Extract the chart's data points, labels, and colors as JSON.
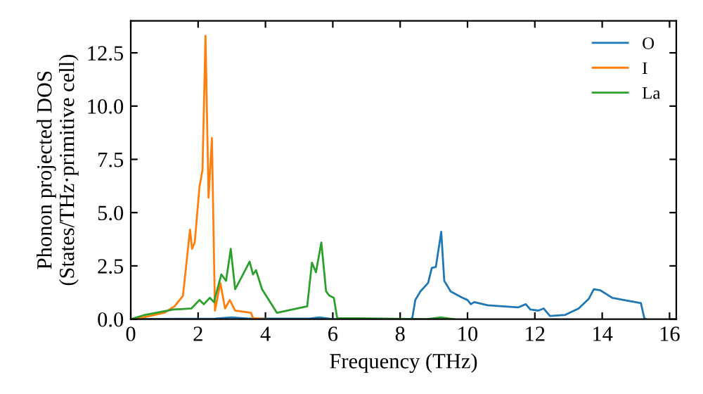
{
  "chart_data": {
    "type": "line",
    "xlabel": "Frequency (THz)",
    "ylabel": "Phonon projected DOS\n(States/THz·primitive cell)",
    "xlim": [
      0,
      16.2
    ],
    "ylim": [
      0,
      14
    ],
    "xticks": [
      0,
      2,
      4,
      6,
      8,
      10,
      12,
      14,
      16
    ],
    "yticks": [
      {
        "value": 0,
        "label": "0.0"
      },
      {
        "value": 2.5,
        "label": "2.5"
      },
      {
        "value": 5,
        "label": "5.0"
      },
      {
        "value": 7.5,
        "label": "7.5"
      },
      {
        "value": 10,
        "label": "10.0"
      },
      {
        "value": 12.5,
        "label": "12.5"
      }
    ],
    "grid": false,
    "legend": "top right",
    "marker": "none",
    "line_style": "solid",
    "series": [
      {
        "name": "O",
        "color": "#1f77b4",
        "x": [
          0,
          2.5,
          3.0,
          3.5,
          5.3,
          5.6,
          6.0,
          8.3,
          8.36,
          8.45,
          8.6,
          8.83,
          8.94,
          9.06,
          9.22,
          9.31,
          9.5,
          9.85,
          10.0,
          10.1,
          10.2,
          10.6,
          11.5,
          11.73,
          11.87,
          12.1,
          12.26,
          12.45,
          12.9,
          13.3,
          13.6,
          13.75,
          13.95,
          14.3,
          15.15,
          15.25,
          15.3
        ],
        "values": [
          0,
          0.02,
          0.08,
          0.02,
          0.02,
          0.08,
          0,
          0,
          0.05,
          0.9,
          1.3,
          1.7,
          2.4,
          2.45,
          4.1,
          1.8,
          1.3,
          1.0,
          0.9,
          0.7,
          0.8,
          0.65,
          0.55,
          0.7,
          0.45,
          0.4,
          0.5,
          0.15,
          0.2,
          0.5,
          0.95,
          1.4,
          1.35,
          1.0,
          0.75,
          0.05,
          0
        ]
      },
      {
        "name": "I",
        "color": "#ff7f0e",
        "x": [
          0,
          0.42,
          1.0,
          1.3,
          1.55,
          1.76,
          1.82,
          1.9,
          2.04,
          2.13,
          2.22,
          2.31,
          2.41,
          2.5,
          2.66,
          2.8,
          2.94,
          3.1,
          3.57,
          3.63,
          4.0
        ],
        "values": [
          0,
          0.1,
          0.3,
          0.6,
          1.1,
          4.2,
          3.3,
          3.6,
          6.2,
          7.0,
          13.3,
          5.7,
          8.5,
          0.4,
          1.7,
          0.5,
          0.9,
          0.4,
          0.3,
          0.05,
          0
        ]
      },
      {
        "name": "La",
        "color": "#2ca02c",
        "x": [
          0,
          0.42,
          1.27,
          1.8,
          2.04,
          2.17,
          2.35,
          2.47,
          2.69,
          2.83,
          2.97,
          3.1,
          3.3,
          3.53,
          3.63,
          3.72,
          3.9,
          4.34,
          5.24,
          5.38,
          5.5,
          5.66,
          5.8,
          5.9,
          6.03,
          6.13,
          8.8,
          9.2,
          9.6
        ],
        "values": [
          0,
          0.2,
          0.45,
          0.5,
          0.9,
          0.7,
          1.0,
          0.8,
          2.1,
          1.8,
          3.3,
          1.4,
          2.0,
          2.7,
          2.1,
          2.3,
          1.4,
          0.3,
          0.6,
          2.65,
          2.2,
          3.6,
          1.3,
          1.1,
          1.0,
          0.05,
          0,
          0.08,
          0
        ]
      }
    ]
  }
}
